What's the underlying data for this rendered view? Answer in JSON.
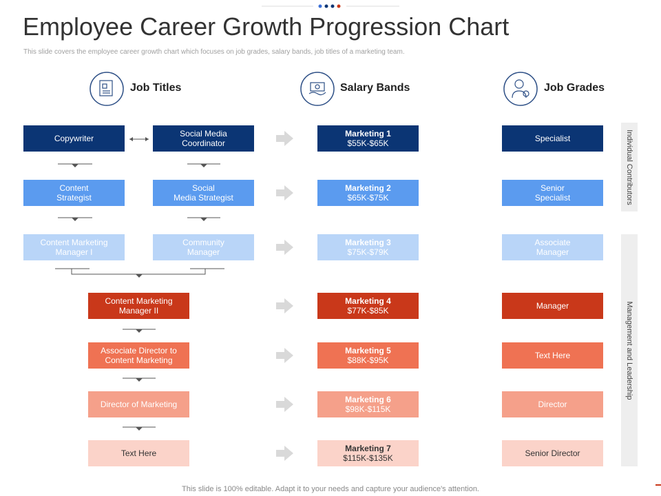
{
  "header": {
    "title": "Employee Career Growth Progression Chart",
    "subtitle": "This slide covers the employee career growth chart which focuses on job grades, salary bands, job titles of a marketing team."
  },
  "columns": [
    "Job Titles",
    "Salary Bands",
    "Job Grades"
  ],
  "job_titles": [
    [
      "Copywriter",
      "Social Media\nCoordinator"
    ],
    [
      "Content\nStrategist",
      "Social\nMedia Strategist"
    ],
    [
      "Content Marketing\nManager I",
      "Community\nManager"
    ],
    [
      "Content Marketing\nManager II"
    ],
    [
      "Associate Director to\nContent Marketing"
    ],
    [
      "Director of Marketing"
    ],
    [
      "Text Here"
    ]
  ],
  "salary_bands": [
    {
      "name": "Marketing 1",
      "range": "$55K-$65K"
    },
    {
      "name": "Marketing 2",
      "range": "$65K-$75K"
    },
    {
      "name": "Marketing 3",
      "range": "$75K-$79K"
    },
    {
      "name": "Marketing 4",
      "range": "$77K-$85K"
    },
    {
      "name": "Marketing 5",
      "range": "$88K-$95K"
    },
    {
      "name": "Marketing 6",
      "range": "$98K-$115K"
    },
    {
      "name": "Marketing 7",
      "range": "$115K-$135K"
    }
  ],
  "job_grades": [
    "Specialist",
    "Senior\nSpecialist",
    "Associate\nManager",
    "Manager",
    "Text Here",
    "Director",
    "Senior Director"
  ],
  "side_labels": [
    "Individual Contributors",
    "Management and Leadership"
  ],
  "footer": "This slide is 100% editable. Adapt it to your needs and capture your audience's attention."
}
